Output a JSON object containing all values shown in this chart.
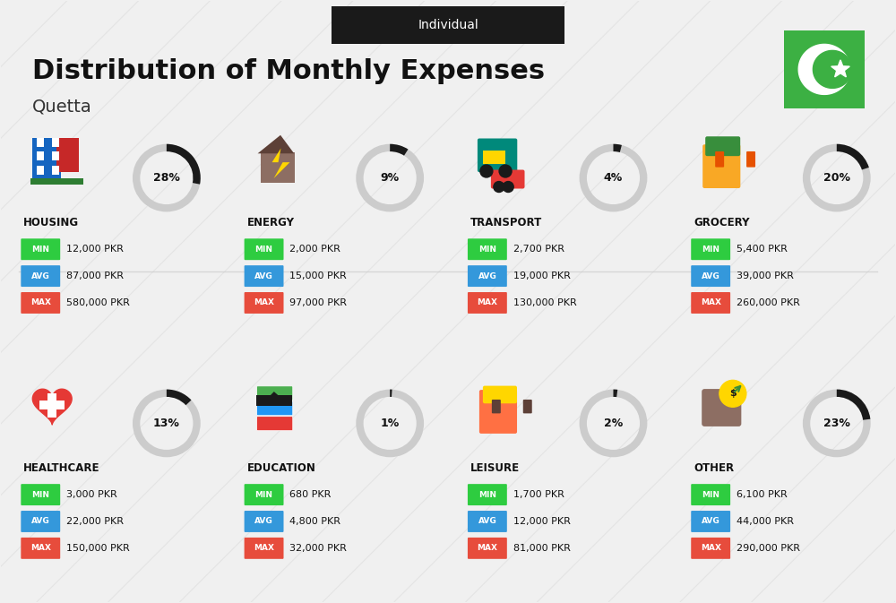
{
  "title": "Distribution of Monthly Expenses",
  "subtitle": "Individual",
  "city": "Quetta",
  "background_color": "#f0f0f0",
  "categories": [
    {
      "name": "HOUSING",
      "percent": 28,
      "min_val": "12,000 PKR",
      "avg_val": "87,000 PKR",
      "max_val": "580,000 PKR",
      "icon_color": "#1565C0",
      "row": 0,
      "col": 0
    },
    {
      "name": "ENERGY",
      "percent": 9,
      "min_val": "2,000 PKR",
      "avg_val": "15,000 PKR",
      "max_val": "97,000 PKR",
      "icon_color": "#F9A825",
      "row": 0,
      "col": 1
    },
    {
      "name": "TRANSPORT",
      "percent": 4,
      "min_val": "2,700 PKR",
      "avg_val": "19,000 PKR",
      "max_val": "130,000 PKR",
      "icon_color": "#00897B",
      "row": 0,
      "col": 2
    },
    {
      "name": "GROCERY",
      "percent": 20,
      "min_val": "5,400 PKR",
      "avg_val": "39,000 PKR",
      "max_val": "260,000 PKR",
      "icon_color": "#E65100",
      "row": 0,
      "col": 3
    },
    {
      "name": "HEALTHCARE",
      "percent": 13,
      "min_val": "3,000 PKR",
      "avg_val": "22,000 PKR",
      "max_val": "150,000 PKR",
      "icon_color": "#C62828",
      "row": 1,
      "col": 0
    },
    {
      "name": "EDUCATION",
      "percent": 1,
      "min_val": "680 PKR",
      "avg_val": "4,800 PKR",
      "max_val": "32,000 PKR",
      "icon_color": "#1B5E20",
      "row": 1,
      "col": 1
    },
    {
      "name": "LEISURE",
      "percent": 2,
      "min_val": "1,700 PKR",
      "avg_val": "12,000 PKR",
      "max_val": "81,000 PKR",
      "icon_color": "#E65100",
      "row": 1,
      "col": 2
    },
    {
      "name": "OTHER",
      "percent": 23,
      "min_val": "6,100 PKR",
      "avg_val": "44,000 PKR",
      "max_val": "290,000 PKR",
      "icon_color": "#795548",
      "row": 1,
      "col": 3
    }
  ],
  "min_color": "#2ecc40",
  "avg_color": "#3498db",
  "max_color": "#e74c3c",
  "donut_filled_color": "#1a1a1a",
  "donut_empty_color": "#cccccc",
  "flag_green": "#3cb043",
  "flag_star_color": "#ffffff"
}
